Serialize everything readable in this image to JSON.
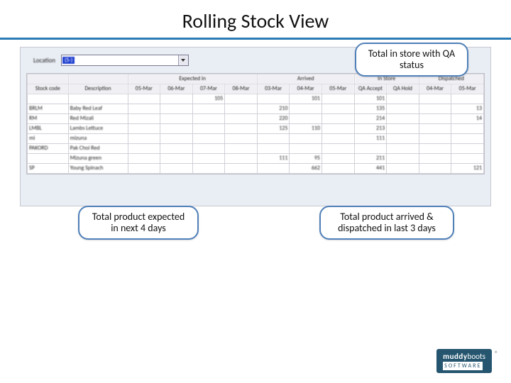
{
  "title": "Rolling Stock View",
  "location": {
    "label": "Location",
    "value": "(5-)"
  },
  "groupHeaders": [
    "",
    "",
    "Expected in",
    "Arrived",
    "In Store",
    "Dispatched"
  ],
  "subHeaders": [
    "Stock code",
    "Description",
    "05-Mar",
    "06-Mar",
    "07-Mar",
    "08-Mar",
    "03-Mar",
    "04-Mar",
    "05-Mar",
    "QA Accept",
    "QA Hold",
    "04-Mar",
    "05-Mar"
  ],
  "rows": [
    [
      "",
      "",
      "",
      "",
      "105",
      "",
      "",
      "101",
      "",
      "101",
      "",
      "",
      ""
    ],
    [
      "BRLM",
      "Baby Red Leaf",
      "",
      "",
      "",
      "",
      "210",
      "",
      "",
      "135",
      "",
      "",
      "13"
    ],
    [
      "RM",
      "Red Mizali",
      "",
      "",
      "",
      "",
      "220",
      "",
      "",
      "214",
      "",
      "",
      "14"
    ],
    [
      "LMBL",
      "Lambs Lettuce",
      "",
      "",
      "",
      "",
      "125",
      "110",
      "",
      "213",
      "",
      "",
      ""
    ],
    [
      "mi",
      "mizuna",
      "",
      "",
      "",
      "",
      "",
      "",
      "",
      "111",
      "",
      "",
      ""
    ],
    [
      "PAKORD",
      "Pak Choi Red",
      "",
      "",
      "",
      "",
      "",
      "",
      "",
      "",
      "",
      "",
      ""
    ],
    [
      "",
      "Mizuna green",
      "",
      "",
      "",
      "",
      "111",
      "95",
      "",
      "211",
      "",
      "",
      ""
    ],
    [
      "SP",
      "Young Spinach",
      "",
      "",
      "",
      "",
      "",
      "662",
      "",
      "441",
      "",
      "",
      "121"
    ]
  ],
  "callouts": {
    "top": "Total in store with QA status",
    "bl": "Total product expected in next 4 days",
    "br": "Total product arrived & dispatched in last 3 days"
  },
  "logo": {
    "brand": "muddy",
    "brand2": "boots",
    "sw": "SOFTWARE"
  },
  "colors": {
    "accent": "#2a7bb5",
    "calloutBorder": "#5080b8",
    "logoBg": "#25556f"
  }
}
